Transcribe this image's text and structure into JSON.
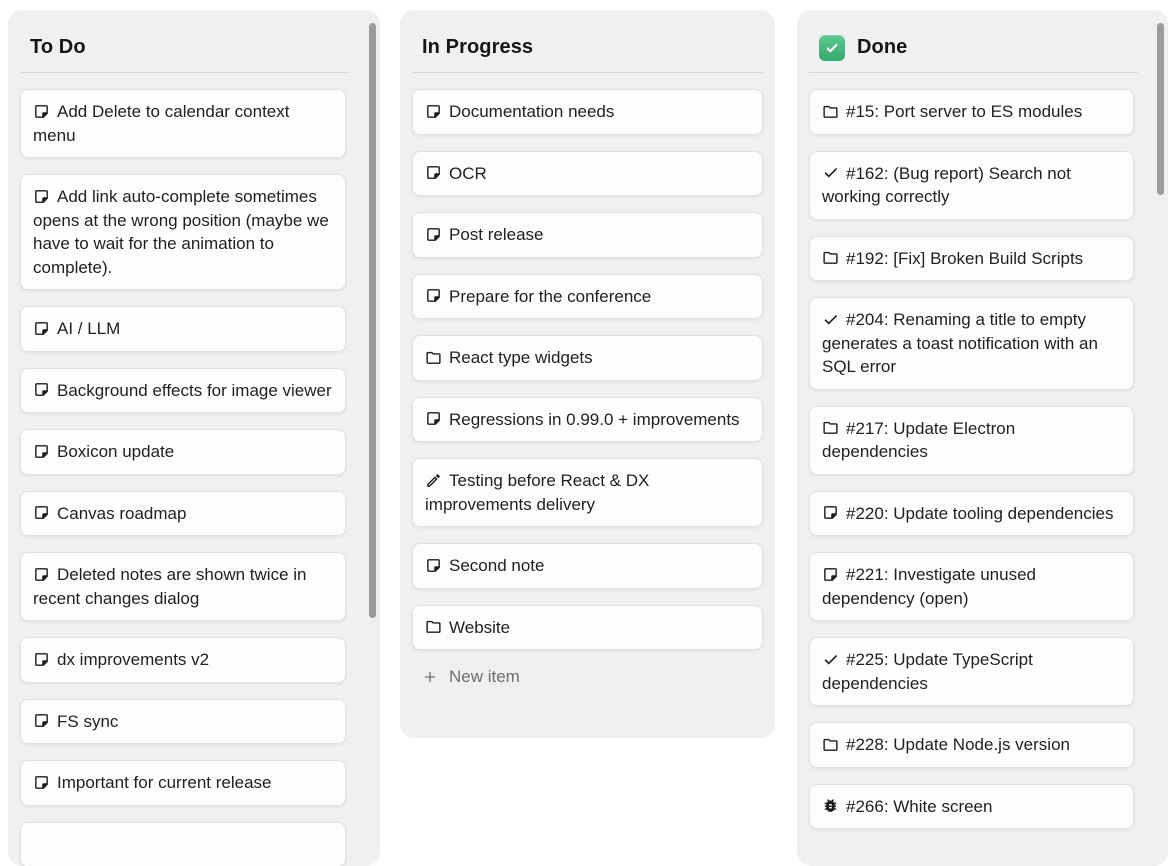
{
  "board": {
    "colors": {
      "page_background": "#ffffff",
      "column_background": "#f1f0f0",
      "card_background": "#fdfdfd",
      "card_border": "#e4e1e1",
      "text": "#1f1f1f",
      "muted_text": "#6e6e6e",
      "scrollbar_thumb": "#9c9c9c",
      "done_badge_green": "#45b87e"
    },
    "columns": [
      {
        "title": "To Do",
        "header_icon": null,
        "has_scrollbar": true,
        "new_item_label": null,
        "cards": [
          {
            "icon": "note",
            "text": "Add Delete to calendar context menu"
          },
          {
            "icon": "note",
            "text": "Add link auto-complete sometimes opens at the wrong position (maybe we have to wait for the animation to complete)."
          },
          {
            "icon": "note",
            "text": "AI / LLM"
          },
          {
            "icon": "note",
            "text": "Background effects for image viewer"
          },
          {
            "icon": "note",
            "text": "Boxicon update"
          },
          {
            "icon": "note",
            "text": "Canvas roadmap"
          },
          {
            "icon": "note",
            "text": "Deleted notes are shown twice in recent changes dialog"
          },
          {
            "icon": "note",
            "text": "dx improvements v2"
          },
          {
            "icon": "note",
            "text": "FS sync"
          },
          {
            "icon": "note",
            "text": "Important for current release"
          },
          {
            "icon": null,
            "text": ""
          }
        ]
      },
      {
        "title": "In Progress",
        "header_icon": null,
        "has_scrollbar": false,
        "new_item_label": "New item",
        "cards": [
          {
            "icon": "note",
            "text": "Documentation needs"
          },
          {
            "icon": "note",
            "text": "OCR"
          },
          {
            "icon": "note",
            "text": "Post release"
          },
          {
            "icon": "note",
            "text": "Prepare for the conference"
          },
          {
            "icon": "folder",
            "text": "React type widgets"
          },
          {
            "icon": "note",
            "text": "Regressions in 0.99.0 + improvements"
          },
          {
            "icon": "pencil",
            "text": "Testing before React & DX improvements delivery"
          },
          {
            "icon": "note",
            "text": "Second note"
          },
          {
            "icon": "folder",
            "text": "Website"
          }
        ]
      },
      {
        "title": "Done",
        "header_icon": "checked-square",
        "has_scrollbar": true,
        "new_item_label": null,
        "cards": [
          {
            "icon": "folder",
            "text": "#15: Port server to ES modules"
          },
          {
            "icon": "check",
            "text": "#162: (Bug report) Search not working correctly"
          },
          {
            "icon": "folder",
            "text": "#192: [Fix] Broken Build Scripts"
          },
          {
            "icon": "check",
            "text": "#204: Renaming a title to empty generates a toast notification with an SQL error"
          },
          {
            "icon": "folder",
            "text": "#217: Update Electron dependencies"
          },
          {
            "icon": "note",
            "text": "#220: Update tooling dependencies"
          },
          {
            "icon": "note",
            "text": "#221: Investigate unused dependency (open)"
          },
          {
            "icon": "check",
            "text": "#225: Update TypeScript dependencies"
          },
          {
            "icon": "folder",
            "text": "#228: Update Node.js version"
          },
          {
            "icon": "bug",
            "text": "#266: White screen"
          }
        ]
      }
    ]
  }
}
